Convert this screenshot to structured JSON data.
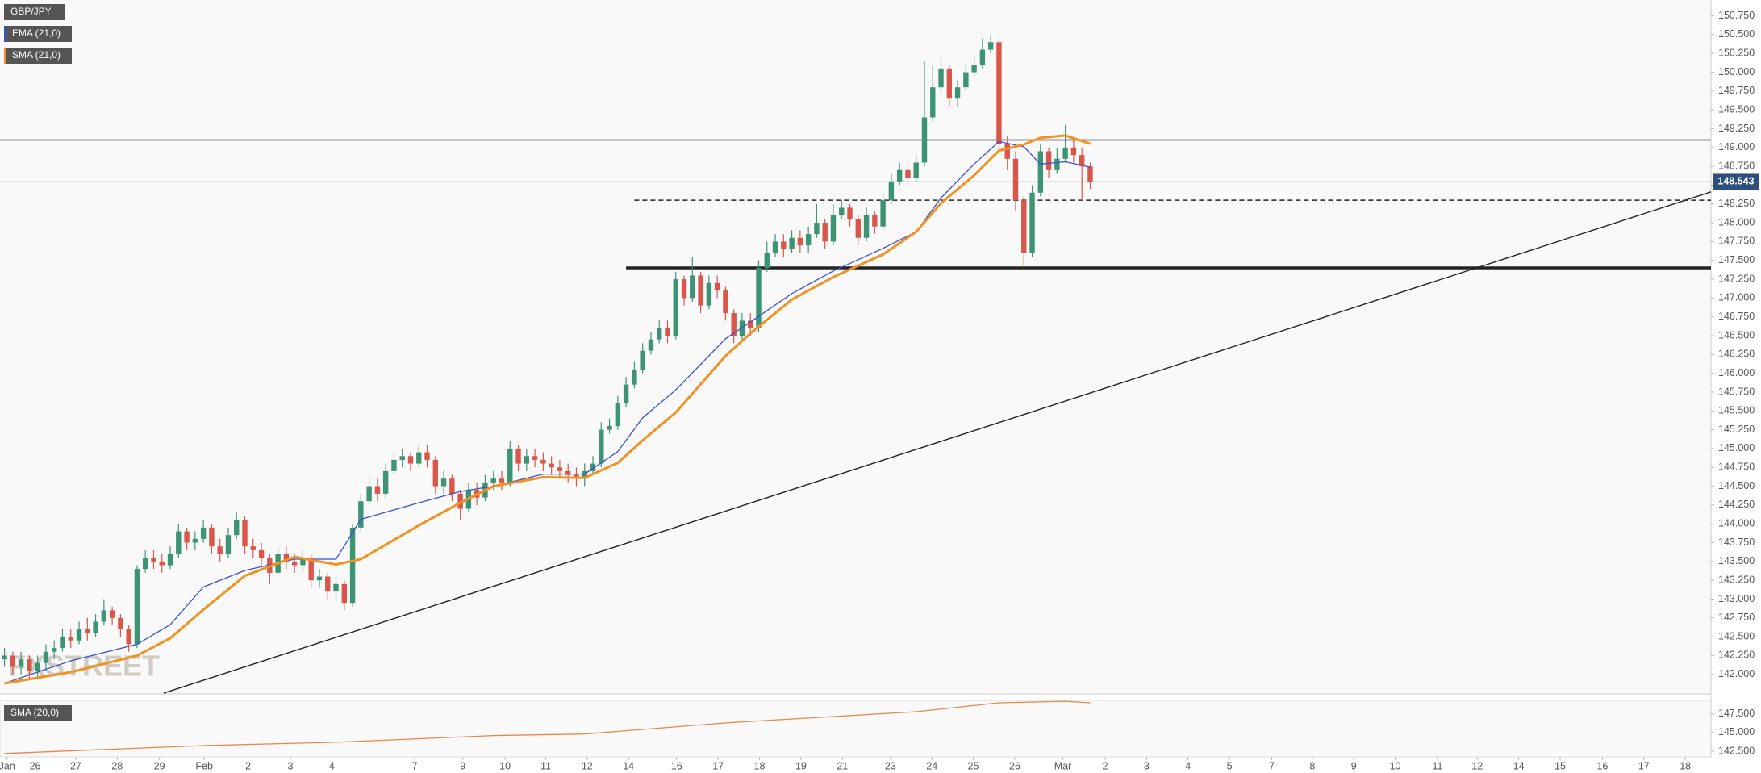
{
  "chart_data": [
    {
      "type": "candlestick",
      "title": "GBP/JPY",
      "watermark": "FXSTREET",
      "up_color": "#3d9474",
      "down_color": "#d9574a",
      "open": [
        142.2,
        142.25,
        142.1,
        142.2,
        142.05,
        142.15,
        142.3,
        142.35,
        142.5,
        142.45,
        142.6,
        142.55,
        142.7,
        142.85,
        142.75,
        142.6,
        142.4,
        143.4,
        143.55,
        143.5,
        143.45,
        143.6,
        143.9,
        143.75,
        143.8,
        143.95,
        143.7,
        143.6,
        143.85,
        144.05,
        143.7,
        143.65,
        143.55,
        143.35,
        143.6,
        143.5,
        143.45,
        143.55,
        143.25,
        143.3,
        143.1,
        143.2,
        142.95,
        143.95,
        144.3,
        144.5,
        144.4,
        144.7,
        144.85,
        144.9,
        144.8,
        144.95,
        144.85,
        144.5,
        144.6,
        144.4,
        144.2,
        144.45,
        144.35,
        144.55,
        144.6,
        144.55,
        145.0,
        144.8,
        144.9,
        144.85,
        144.8,
        144.75,
        144.7,
        144.65,
        144.6,
        144.7,
        144.8,
        145.25,
        145.3,
        145.6,
        145.85,
        146.05,
        146.3,
        146.45,
        146.6,
        146.5,
        147.25,
        147.0,
        147.3,
        146.9,
        147.2,
        147.1,
        146.8,
        146.5,
        146.7,
        146.6,
        147.4,
        147.6,
        147.75,
        147.65,
        147.8,
        147.7,
        147.85,
        148.0,
        147.75,
        148.1,
        148.2,
        148.05,
        147.8,
        148.1,
        147.95,
        148.3,
        148.55,
        148.7,
        148.6,
        148.8,
        149.4,
        149.8,
        150.05,
        149.65,
        149.8,
        150.0,
        150.1,
        150.3,
        150.4,
        149.05,
        148.85,
        148.3,
        147.6,
        148.4,
        148.95,
        148.7,
        148.85,
        149.0,
        148.9,
        148.75
      ],
      "high": [
        142.35,
        142.3,
        142.3,
        142.25,
        142.25,
        142.4,
        142.45,
        142.6,
        142.6,
        142.7,
        142.75,
        142.8,
        143.0,
        142.9,
        142.8,
        142.65,
        143.45,
        143.65,
        143.65,
        143.6,
        143.7,
        144.0,
        143.95,
        143.9,
        144.05,
        144.0,
        143.8,
        143.95,
        144.15,
        144.1,
        143.8,
        143.75,
        143.6,
        143.7,
        143.7,
        143.6,
        143.65,
        143.6,
        143.4,
        143.35,
        143.3,
        143.25,
        144.0,
        144.4,
        144.6,
        144.6,
        144.8,
        144.95,
        145.0,
        144.95,
        145.05,
        145.05,
        144.9,
        144.7,
        144.65,
        144.45,
        144.55,
        144.55,
        144.65,
        144.7,
        144.7,
        145.1,
        145.05,
        145.0,
        145.0,
        144.95,
        144.9,
        144.85,
        144.8,
        144.75,
        144.8,
        144.9,
        145.35,
        145.4,
        145.7,
        145.95,
        146.15,
        146.4,
        146.55,
        146.7,
        146.7,
        147.35,
        147.3,
        147.55,
        147.35,
        147.3,
        147.3,
        147.15,
        146.85,
        146.8,
        146.8,
        147.5,
        147.75,
        147.85,
        147.85,
        147.9,
        147.9,
        147.95,
        148.25,
        148.05,
        148.25,
        148.3,
        148.25,
        148.1,
        148.2,
        148.15,
        148.4,
        148.65,
        148.8,
        148.8,
        148.9,
        150.15,
        150.1,
        150.2,
        150.1,
        149.9,
        150.1,
        150.2,
        150.45,
        150.5,
        150.45,
        149.15,
        148.95,
        148.35,
        148.5,
        149.05,
        149.0,
        149.0,
        149.3,
        149.1,
        149.0,
        148.8
      ],
      "low": [
        142.1,
        142.0,
        142.0,
        141.95,
        141.95,
        142.05,
        142.2,
        142.3,
        142.35,
        142.4,
        142.45,
        142.5,
        142.65,
        142.65,
        142.5,
        142.3,
        142.35,
        143.35,
        143.4,
        143.35,
        143.4,
        143.55,
        143.65,
        143.65,
        143.75,
        143.6,
        143.5,
        143.55,
        143.8,
        143.6,
        143.55,
        143.45,
        143.2,
        143.3,
        143.4,
        143.35,
        143.35,
        143.15,
        143.15,
        143.0,
        142.95,
        142.85,
        142.9,
        143.9,
        144.25,
        144.3,
        144.35,
        144.65,
        144.75,
        144.7,
        144.75,
        144.75,
        144.4,
        144.4,
        144.3,
        144.05,
        144.15,
        144.25,
        144.3,
        144.45,
        144.45,
        144.5,
        144.7,
        144.7,
        144.75,
        144.7,
        144.65,
        144.6,
        144.55,
        144.5,
        144.5,
        144.65,
        144.75,
        145.2,
        145.25,
        145.55,
        145.8,
        146.0,
        146.25,
        146.4,
        146.4,
        146.45,
        146.9,
        146.95,
        146.8,
        146.85,
        147.0,
        146.7,
        146.4,
        146.45,
        146.5,
        146.55,
        147.35,
        147.55,
        147.55,
        147.6,
        147.6,
        147.6,
        147.8,
        147.65,
        147.7,
        148.05,
        147.95,
        147.7,
        147.75,
        147.85,
        147.9,
        148.25,
        148.5,
        148.5,
        148.55,
        148.75,
        149.35,
        149.7,
        149.55,
        149.55,
        149.75,
        149.95,
        150.05,
        150.25,
        148.95,
        148.7,
        148.15,
        147.4,
        147.55,
        148.35,
        148.6,
        148.65,
        148.8,
        148.8,
        148.3,
        148.45
      ],
      "close": [
        142.25,
        142.1,
        142.2,
        142.05,
        142.15,
        142.3,
        142.35,
        142.5,
        142.45,
        142.6,
        142.55,
        142.7,
        142.85,
        142.75,
        142.6,
        142.4,
        143.4,
        143.55,
        143.5,
        143.45,
        143.6,
        143.9,
        143.75,
        143.8,
        143.95,
        143.7,
        143.6,
        143.85,
        144.05,
        143.7,
        143.65,
        143.55,
        143.35,
        143.6,
        143.5,
        143.45,
        143.55,
        143.25,
        143.3,
        143.1,
        143.2,
        142.95,
        143.95,
        144.3,
        144.5,
        144.4,
        144.7,
        144.85,
        144.9,
        144.8,
        144.95,
        144.85,
        144.5,
        144.6,
        144.4,
        144.2,
        144.45,
        144.35,
        144.55,
        144.6,
        144.55,
        145.0,
        144.8,
        144.9,
        144.85,
        144.8,
        144.75,
        144.7,
        144.65,
        144.6,
        144.7,
        144.8,
        145.25,
        145.3,
        145.6,
        145.85,
        146.05,
        146.3,
        146.45,
        146.6,
        146.5,
        147.25,
        147.0,
        147.3,
        146.9,
        147.2,
        147.1,
        146.8,
        146.5,
        146.7,
        146.6,
        147.4,
        147.6,
        147.75,
        147.65,
        147.8,
        147.7,
        147.85,
        148.0,
        147.75,
        148.1,
        148.2,
        148.05,
        147.8,
        148.1,
        147.95,
        148.3,
        148.55,
        148.7,
        148.6,
        148.8,
        149.4,
        149.8,
        150.05,
        149.65,
        149.8,
        150.0,
        150.1,
        150.3,
        150.4,
        149.05,
        148.85,
        148.3,
        147.6,
        148.4,
        148.95,
        148.7,
        148.85,
        149.0,
        148.9,
        148.75,
        148.543
      ],
      "last_price": 148.543,
      "last_price_color": "#2e4f7c",
      "series": [
        {
          "name": "EMA (21,0)",
          "color": "#3b4fd0",
          "x": [
            0,
            8,
            16,
            20,
            24,
            29,
            35,
            40,
            43,
            50,
            55,
            59,
            65,
            70,
            74,
            77,
            81,
            87,
            90,
            95,
            100,
            106,
            110,
            113,
            117,
            120,
            123,
            125,
            128,
            131
          ],
          "values": [
            141.88,
            142.18,
            142.4,
            142.66,
            143.16,
            143.38,
            143.53,
            143.53,
            144.06,
            144.28,
            144.43,
            144.5,
            144.66,
            144.66,
            144.96,
            145.41,
            145.78,
            146.46,
            146.68,
            147.06,
            147.36,
            147.66,
            147.88,
            148.33,
            148.78,
            149.08,
            149.01,
            148.78,
            148.81,
            148.74
          ]
        },
        {
          "name": "SMA (21,0)",
          "color": "#f39121",
          "x": [
            0,
            8,
            16,
            20,
            24,
            29,
            35,
            40,
            43,
            50,
            55,
            59,
            65,
            70,
            74,
            77,
            81,
            87,
            90,
            95,
            100,
            106,
            110,
            113,
            117,
            120,
            123,
            125,
            128,
            131
          ],
          "values": [
            141.88,
            142.03,
            142.25,
            142.48,
            142.86,
            143.31,
            143.56,
            143.46,
            143.53,
            143.98,
            144.28,
            144.5,
            144.62,
            144.61,
            144.81,
            145.11,
            145.48,
            146.23,
            146.53,
            146.98,
            147.28,
            147.58,
            147.88,
            148.26,
            148.63,
            148.96,
            149.04,
            149.13,
            149.16,
            149.05
          ]
        }
      ],
      "hlines": [
        {
          "y": 149.1,
          "style": "solid"
        },
        {
          "y": 148.3,
          "style": "dashed",
          "x_start": 76
        },
        {
          "y": 147.4,
          "style": "thick",
          "x_start": 75
        }
      ],
      "trendline": {
        "x": [
          19.2,
          205.9
        ],
        "y": [
          141.75,
          148.41
        ]
      },
      "xlim": [
        -0.54,
        205.9
      ],
      "ylim": [
        141.74,
        150.96
      ],
      "xticks": [
        {
          "value": 0.3,
          "label": "Jan"
        },
        {
          "value": 3.7,
          "label": "26"
        },
        {
          "value": 8.6,
          "label": "27"
        },
        {
          "value": 13.6,
          "label": "28"
        },
        {
          "value": 18.7,
          "label": "29"
        },
        {
          "value": 24.1,
          "label": "Feb"
        },
        {
          "value": 29.4,
          "label": "2"
        },
        {
          "value": 34.5,
          "label": "3"
        },
        {
          "value": 39.5,
          "label": "4"
        },
        {
          "value": 49.5,
          "label": "7"
        },
        {
          "value": 55.3,
          "label": "9"
        },
        {
          "value": 60.4,
          "label": "10"
        },
        {
          "value": 65.3,
          "label": "11"
        },
        {
          "value": 70.3,
          "label": "12"
        },
        {
          "value": 75.3,
          "label": "14"
        },
        {
          "value": 81.1,
          "label": "16"
        },
        {
          "value": 86.1,
          "label": "17"
        },
        {
          "value": 91.1,
          "label": "18"
        },
        {
          "value": 96.1,
          "label": "19"
        },
        {
          "value": 101.1,
          "label": "21"
        },
        {
          "value": 106.9,
          "label": "23"
        },
        {
          "value": 111.9,
          "label": "24"
        },
        {
          "value": 116.9,
          "label": "25"
        },
        {
          "value": 121.9,
          "label": "26"
        },
        {
          "value": 127.7,
          "label": "Mar"
        },
        {
          "value": 132.8,
          "label": "2"
        },
        {
          "value": 137.8,
          "label": "3"
        },
        {
          "value": 142.8,
          "label": "4"
        },
        {
          "value": 147.8,
          "label": "5"
        },
        {
          "value": 152.9,
          "label": "7"
        },
        {
          "value": 157.8,
          "label": "8"
        },
        {
          "value": 162.8,
          "label": "9"
        },
        {
          "value": 167.8,
          "label": "10"
        },
        {
          "value": 172.9,
          "label": "11"
        },
        {
          "value": 177.7,
          "label": "12"
        },
        {
          "value": 182.7,
          "label": "14"
        },
        {
          "value": 187.7,
          "label": "15"
        },
        {
          "value": 192.8,
          "label": "16"
        },
        {
          "value": 197.8,
          "label": "17"
        },
        {
          "value": 202.8,
          "label": "18"
        }
      ],
      "yticks": [
        {
          "value": 142,
          "label": "142.000"
        },
        {
          "value": 142.25,
          "label": "142.250"
        },
        {
          "value": 142.5,
          "label": "142.500"
        },
        {
          "value": 142.75,
          "label": "142.750"
        },
        {
          "value": 143,
          "label": "143.000"
        },
        {
          "value": 143.25,
          "label": "143.250"
        },
        {
          "value": 143.5,
          "label": "143.500"
        },
        {
          "value": 143.75,
          "label": "143.750"
        },
        {
          "value": 144,
          "label": "144.000"
        },
        {
          "value": 144.25,
          "label": "144.250"
        },
        {
          "value": 144.5,
          "label": "144.500"
        },
        {
          "value": 144.75,
          "label": "144.750"
        },
        {
          "value": 145,
          "label": "145.000"
        },
        {
          "value": 145.25,
          "label": "145.250"
        },
        {
          "value": 145.5,
          "label": "145.500"
        },
        {
          "value": 145.75,
          "label": "145.750"
        },
        {
          "value": 146,
          "label": "146.000"
        },
        {
          "value": 146.25,
          "label": "146.250"
        },
        {
          "value": 146.5,
          "label": "146.500"
        },
        {
          "value": 146.75,
          "label": "146.750"
        },
        {
          "value": 147,
          "label": "147.000"
        },
        {
          "value": 147.25,
          "label": "147.250"
        },
        {
          "value": 147.5,
          "label": "147.500"
        },
        {
          "value": 147.75,
          "label": "147.750"
        },
        {
          "value": 148,
          "label": "148.000"
        },
        {
          "value": 148.25,
          "label": "148.250"
        },
        {
          "value": 148.5,
          "label": "148.500"
        },
        {
          "value": 148.75,
          "label": "148.750"
        },
        {
          "value": 149,
          "label": "149.000"
        },
        {
          "value": 149.25,
          "label": "149.250"
        },
        {
          "value": 149.5,
          "label": "149.500"
        },
        {
          "value": 149.75,
          "label": "149.750"
        },
        {
          "value": 150,
          "label": "150.000"
        },
        {
          "value": 150.25,
          "label": "150.250"
        },
        {
          "value": 150.5,
          "label": "150.500"
        },
        {
          "value": 150.75,
          "label": "150.750"
        }
      ]
    },
    {
      "type": "line",
      "series": [
        {
          "name": "SMA (20,0)",
          "color": "#e8874a",
          "x": [
            0,
            24,
            40,
            59,
            70,
            87,
            110,
            120,
            128,
            131
          ],
          "values": [
            142.2,
            143.26,
            143.7,
            144.6,
            144.8,
            146.3,
            147.8,
            149.0,
            149.2,
            149.0
          ]
        }
      ],
      "xlim": [
        -0.54,
        205.9
      ],
      "ylim": [
        141.74,
        149.32
      ],
      "yticks": [
        {
          "value": 142.5,
          "label": "142.500"
        },
        {
          "value": 145,
          "label": "145.000"
        },
        {
          "value": 147.5,
          "label": "147.500"
        }
      ]
    }
  ]
}
